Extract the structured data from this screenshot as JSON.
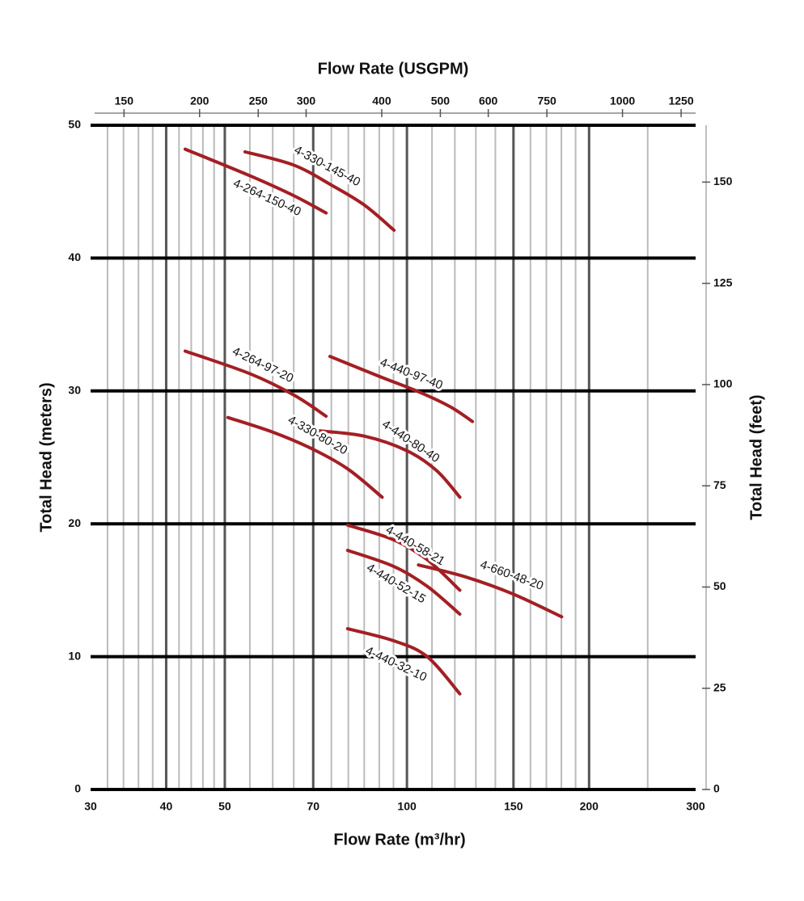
{
  "chart_data": {
    "type": "line",
    "title_top": "Flow Rate (USGPM)",
    "x_label": "Flow Rate (m³/hr)",
    "y_label": "Total Head (meters)",
    "y2_label": "Total Head (feet)",
    "x_scale": "log",
    "xlim": [
      30,
      300
    ],
    "xticks": [
      30,
      40,
      50,
      70,
      100,
      150,
      200,
      300
    ],
    "x_minor_grid": [
      32,
      34,
      36,
      38,
      42,
      44,
      46,
      48,
      55,
      60,
      65,
      75,
      80,
      85,
      90,
      95,
      110,
      120,
      130,
      140,
      160,
      170,
      180,
      190,
      250
    ],
    "x2lim": [
      132.09,
      1320.9
    ],
    "x2ticks": [
      150,
      200,
      250,
      300,
      400,
      500,
      600,
      750,
      1000,
      1250
    ],
    "ylim": [
      0,
      50
    ],
    "yticks": [
      0,
      10,
      20,
      30,
      40,
      50
    ],
    "y2lim": [
      0,
      164.04
    ],
    "y2ticks": [
      0,
      25,
      50,
      75,
      100,
      125,
      150
    ],
    "grid": true,
    "major_grid_color": "#555555",
    "minor_grid_color": "#bbbbbb",
    "series": [
      {
        "name": "4-264-150-40",
        "color": "#a31f24",
        "x": [
          43,
          55,
          65,
          73.5
        ],
        "values": [
          48.2,
          46.2,
          44.7,
          43.4
        ]
      },
      {
        "name": "4-330-145-40",
        "color": "#a31f24",
        "x": [
          54,
          65,
          75,
          85,
          95.2
        ],
        "values": [
          48,
          47,
          45.5,
          44,
          42.1
        ]
      },
      {
        "name": "4-264-97-20",
        "color": "#a31f24",
        "x": [
          43,
          55,
          65,
          73.5
        ],
        "values": [
          33,
          31.3,
          29.7,
          28.1
        ]
      },
      {
        "name": "4-440-97-40",
        "color": "#a31f24",
        "x": [
          74.6,
          90,
          105,
          118,
          128.3
        ],
        "values": [
          32.6,
          31.1,
          29.9,
          28.8,
          27.7
        ]
      },
      {
        "name": "4-330-80-20",
        "color": "#a31f24",
        "x": [
          50.6,
          60,
          70,
          80,
          91
        ],
        "values": [
          28,
          26.9,
          25.6,
          24.1,
          22
        ]
      },
      {
        "name": "4-440-80-40",
        "color": "#a31f24",
        "x": [
          71.5,
          85,
          100,
          112,
          122.3
        ],
        "values": [
          27,
          26.6,
          25.5,
          24,
          22
        ]
      },
      {
        "name": "4-440-58-21",
        "color": "#a31f24",
        "x": [
          79.8,
          95,
          108,
          122.3
        ],
        "values": [
          19.9,
          18.8,
          17.3,
          15
        ]
      },
      {
        "name": "4-440-52-15",
        "color": "#a31f24",
        "x": [
          79.8,
          95,
          108,
          122.3
        ],
        "values": [
          18,
          16.8,
          15.3,
          13.2
        ]
      },
      {
        "name": "4-660-48-20",
        "color": "#a31f24",
        "x": [
          104.5,
          125,
          150,
          180.2
        ],
        "values": [
          16.9,
          16,
          14.7,
          13
        ]
      },
      {
        "name": "4-440-32-10",
        "color": "#a31f24",
        "x": [
          79.8,
          95,
          108,
          122.3
        ],
        "values": [
          12.1,
          11.2,
          10,
          7.2
        ]
      }
    ]
  }
}
